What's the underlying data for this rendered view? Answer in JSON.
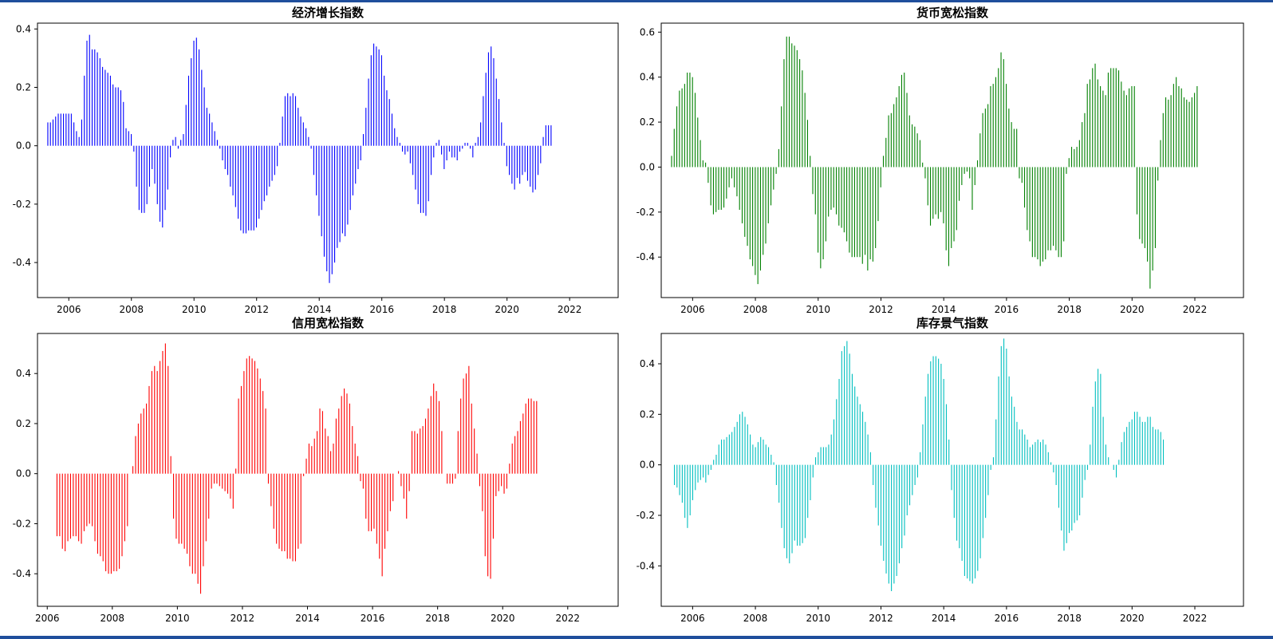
{
  "chart_data": [
    {
      "type": "bar",
      "title": "经济增长指数",
      "color": "#0000ff",
      "xlabel": "",
      "ylabel": "",
      "xlim": [
        2005.0,
        2023.55
      ],
      "ylim": [
        -0.52,
        0.42
      ],
      "xticks": [
        2006,
        2008,
        2010,
        2012,
        2014,
        2016,
        2018,
        2020,
        2022
      ],
      "xtick_labels": [
        "2006",
        "2008",
        "2010",
        "2012",
        "2014",
        "2016",
        "2018",
        "2020",
        "2022"
      ],
      "yticks": [
        -0.4,
        -0.2,
        0.0,
        0.2,
        0.4
      ],
      "ytick_labels": [
        "-0.4",
        "-0.2",
        "0.0",
        "0.2",
        "0.4"
      ],
      "grid": false,
      "start": 2005.33,
      "step": 0.0833,
      "values": [
        0.08,
        0.08,
        0.09,
        0.1,
        0.11,
        0.11,
        0.11,
        0.11,
        0.11,
        0.11,
        0.08,
        0.05,
        0.03,
        0.09,
        0.24,
        0.36,
        0.38,
        0.33,
        0.33,
        0.32,
        0.3,
        0.27,
        0.26,
        0.25,
        0.24,
        0.21,
        0.2,
        0.2,
        0.19,
        0.15,
        0.06,
        0.05,
        0.04,
        -0.02,
        -0.14,
        -0.22,
        -0.23,
        -0.23,
        -0.2,
        -0.14,
        -0.08,
        -0.13,
        -0.2,
        -0.26,
        -0.28,
        -0.22,
        -0.15,
        -0.04,
        0.02,
        0.03,
        -0.01,
        0.02,
        0.04,
        0.14,
        0.24,
        0.3,
        0.36,
        0.37,
        0.33,
        0.26,
        0.2,
        0.13,
        0.11,
        0.08,
        0.05,
        0.02,
        -0.01,
        -0.05,
        -0.08,
        -0.1,
        -0.14,
        -0.17,
        -0.21,
        -0.25,
        -0.29,
        -0.3,
        -0.3,
        -0.29,
        -0.29,
        -0.29,
        -0.28,
        -0.25,
        -0.22,
        -0.19,
        -0.17,
        -0.14,
        -0.12,
        -0.1,
        -0.07,
        0.01,
        0.1,
        0.17,
        0.18,
        0.17,
        0.18,
        0.17,
        0.13,
        0.1,
        0.08,
        0.06,
        0.03,
        -0.01,
        -0.1,
        -0.17,
        -0.24,
        -0.31,
        -0.38,
        -0.43,
        -0.47,
        -0.44,
        -0.4,
        -0.35,
        -0.33,
        -0.3,
        -0.31,
        -0.27,
        -0.22,
        -0.17,
        -0.13,
        -0.08,
        -0.05,
        0.04,
        0.13,
        0.23,
        0.31,
        0.35,
        0.34,
        0.33,
        0.31,
        0.24,
        0.19,
        0.16,
        0.11,
        0.06,
        0.03,
        0.01,
        -0.02,
        -0.03,
        -0.02,
        -0.06,
        -0.1,
        -0.15,
        -0.2,
        -0.23,
        -0.23,
        -0.24,
        -0.19,
        -0.1,
        -0.04,
        0.01,
        0.02,
        -0.03,
        -0.08,
        -0.05,
        -0.02,
        -0.04,
        -0.04,
        -0.05,
        -0.02,
        -0.01,
        0.01,
        0.01,
        -0.01,
        -0.04,
        0.01,
        0.03,
        0.08,
        0.17,
        0.25,
        0.32,
        0.34,
        0.3,
        0.23,
        0.16,
        0.08,
        0.01,
        -0.07,
        -0.1,
        -0.13,
        -0.15,
        -0.11,
        -0.13,
        -0.1,
        -0.09,
        -0.12,
        -0.14,
        -0.16,
        -0.15,
        -0.1,
        -0.06,
        0.03,
        0.07,
        0.07,
        0.07
      ]
    },
    {
      "type": "bar",
      "title": "货币宽松指数",
      "color": "#008000",
      "xlabel": "",
      "ylabel": "",
      "xlim": [
        2005.0,
        2023.55
      ],
      "ylim": [
        -0.58,
        0.64
      ],
      "xticks": [
        2006,
        2008,
        2010,
        2012,
        2014,
        2016,
        2018,
        2020,
        2022
      ],
      "xtick_labels": [
        "2006",
        "2008",
        "2010",
        "2012",
        "2014",
        "2016",
        "2018",
        "2020",
        "2022"
      ],
      "yticks": [
        -0.4,
        -0.2,
        0.0,
        0.2,
        0.4,
        0.6
      ],
      "ytick_labels": [
        "-0.4",
        "-0.2",
        "0.0",
        "0.2",
        "0.4",
        "0.6"
      ],
      "grid": false,
      "start": 2005.33,
      "step": 0.0833,
      "values": [
        0.05,
        0.17,
        0.27,
        0.34,
        0.35,
        0.37,
        0.42,
        0.42,
        0.4,
        0.33,
        0.22,
        0.12,
        0.03,
        0.02,
        -0.07,
        -0.17,
        -0.21,
        -0.2,
        -0.19,
        -0.19,
        -0.18,
        -0.14,
        -0.09,
        -0.05,
        -0.09,
        -0.13,
        -0.19,
        -0.25,
        -0.31,
        -0.35,
        -0.41,
        -0.44,
        -0.48,
        -0.52,
        -0.46,
        -0.39,
        -0.34,
        -0.25,
        -0.17,
        -0.1,
        -0.03,
        0.08,
        0.27,
        0.48,
        0.58,
        0.58,
        0.55,
        0.54,
        0.52,
        0.48,
        0.43,
        0.33,
        0.21,
        0.05,
        -0.12,
        -0.21,
        -0.38,
        -0.45,
        -0.41,
        -0.33,
        -0.22,
        -0.19,
        -0.18,
        -0.21,
        -0.26,
        -0.27,
        -0.29,
        -0.33,
        -0.38,
        -0.4,
        -0.4,
        -0.4,
        -0.4,
        -0.43,
        -0.39,
        -0.46,
        -0.41,
        -0.42,
        -0.36,
        -0.24,
        -0.09,
        0.05,
        0.13,
        0.23,
        0.24,
        0.28,
        0.31,
        0.36,
        0.41,
        0.42,
        0.33,
        0.23,
        0.19,
        0.18,
        0.15,
        0.12,
        0.02,
        -0.05,
        -0.17,
        -0.26,
        -0.23,
        -0.21,
        -0.23,
        -0.2,
        -0.25,
        -0.37,
        -0.44,
        -0.36,
        -0.33,
        -0.28,
        -0.15,
        -0.08,
        -0.03,
        -0.02,
        -0.05,
        -0.19,
        -0.08,
        0.03,
        0.15,
        0.24,
        0.26,
        0.28,
        0.36,
        0.37,
        0.4,
        0.44,
        0.51,
        0.48,
        0.37,
        0.26,
        0.2,
        0.17,
        0.17,
        -0.05,
        -0.07,
        -0.18,
        -0.28,
        -0.33,
        -0.4,
        -0.4,
        -0.41,
        -0.44,
        -0.42,
        -0.41,
        -0.37,
        -0.37,
        -0.35,
        -0.37,
        -0.4,
        -0.4,
        -0.33,
        -0.03,
        0.04,
        0.09,
        0.08,
        0.09,
        0.12,
        0.2,
        0.24,
        0.37,
        0.39,
        0.44,
        0.46,
        0.39,
        0.36,
        0.34,
        0.32,
        0.42,
        0.44,
        0.44,
        0.44,
        0.43,
        0.38,
        0.34,
        0.32,
        0.35,
        0.36,
        0.36,
        -0.21,
        -0.32,
        -0.34,
        -0.36,
        -0.42,
        -0.54,
        -0.46,
        -0.36,
        -0.06,
        0.12,
        0.24,
        0.31,
        0.3,
        0.32,
        0.37,
        0.4,
        0.36,
        0.35,
        0.31,
        0.3,
        0.29,
        0.31,
        0.33,
        0.36
      ]
    },
    {
      "type": "bar",
      "title": "信用宽松指数",
      "color": "#ff0000",
      "xlabel": "",
      "ylabel": "",
      "xlim": [
        2005.7,
        2023.55
      ],
      "ylim": [
        -0.53,
        0.56
      ],
      "xticks": [
        2006,
        2008,
        2010,
        2012,
        2014,
        2016,
        2018,
        2020,
        2022
      ],
      "xtick_labels": [
        "2006",
        "2008",
        "2010",
        "2012",
        "2014",
        "2016",
        "2018",
        "2020",
        "2022"
      ],
      "yticks": [
        -0.4,
        -0.2,
        0.0,
        0.2,
        0.4
      ],
      "ytick_labels": [
        "-0.4",
        "-0.2",
        "0.0",
        "0.2",
        "0.4"
      ],
      "grid": false,
      "start": 2006.3,
      "step": 0.0833,
      "values": [
        -0.25,
        -0.25,
        -0.3,
        -0.31,
        -0.27,
        -0.26,
        -0.25,
        -0.25,
        -0.27,
        -0.28,
        -0.23,
        -0.21,
        -0.2,
        -0.21,
        -0.27,
        -0.32,
        -0.33,
        -0.35,
        -0.39,
        -0.4,
        -0.4,
        -0.39,
        -0.39,
        -0.38,
        -0.33,
        -0.27,
        -0.21,
        0.0,
        0.03,
        0.15,
        0.2,
        0.24,
        0.26,
        0.28,
        0.35,
        0.41,
        0.43,
        0.41,
        0.45,
        0.49,
        0.52,
        0.43,
        0.07,
        -0.18,
        -0.26,
        -0.28,
        -0.28,
        -0.3,
        -0.32,
        -0.37,
        -0.4,
        -0.4,
        -0.44,
        -0.48,
        -0.37,
        -0.27,
        -0.18,
        -0.06,
        -0.04,
        -0.04,
        -0.05,
        -0.06,
        -0.07,
        -0.08,
        -0.1,
        -0.14,
        0.02,
        0.3,
        0.35,
        0.41,
        0.46,
        0.47,
        0.46,
        0.45,
        0.42,
        0.38,
        0.33,
        0.26,
        -0.04,
        -0.13,
        -0.22,
        -0.28,
        -0.3,
        -0.31,
        -0.31,
        -0.34,
        -0.34,
        -0.35,
        -0.35,
        -0.3,
        -0.28,
        -0.01,
        0.06,
        0.12,
        0.11,
        0.14,
        0.17,
        0.26,
        0.25,
        0.18,
        0.15,
        0.09,
        0.12,
        0.22,
        0.26,
        0.31,
        0.34,
        0.32,
        0.28,
        0.19,
        0.12,
        0.07,
        -0.03,
        -0.06,
        -0.18,
        -0.23,
        -0.23,
        -0.22,
        -0.28,
        -0.34,
        -0.41,
        -0.3,
        -0.23,
        -0.15,
        -0.11,
        0.0,
        0.01,
        -0.05,
        -0.1,
        -0.18,
        -0.07,
        0.17,
        0.17,
        0.16,
        0.18,
        0.19,
        0.22,
        0.26,
        0.31,
        0.36,
        0.33,
        0.29,
        0.17,
        0.0,
        -0.04,
        -0.04,
        -0.04,
        -0.02,
        0.17,
        0.3,
        0.38,
        0.4,
        0.43,
        0.28,
        0.18,
        0.08,
        -0.05,
        -0.15,
        -0.33,
        -0.41,
        -0.42,
        -0.26,
        -0.09,
        -0.07,
        -0.05,
        -0.08,
        -0.06,
        0.04,
        0.12,
        0.15,
        0.17,
        0.21,
        0.24,
        0.28,
        0.3,
        0.3,
        0.29,
        0.29
      ]
    },
    {
      "type": "bar",
      "title": "库存景气指数",
      "color": "#00bfbf",
      "xlabel": "",
      "ylabel": "",
      "xlim": [
        2005.0,
        2023.55
      ],
      "ylim": [
        -0.56,
        0.52
      ],
      "xticks": [
        2006,
        2008,
        2010,
        2012,
        2014,
        2016,
        2018,
        2020,
        2022
      ],
      "xtick_labels": [
        "2006",
        "2008",
        "2010",
        "2012",
        "2014",
        "2016",
        "2018",
        "2020",
        "2022"
      ],
      "yticks": [
        -0.4,
        -0.2,
        0.0,
        0.2,
        0.4
      ],
      "ytick_labels": [
        "-0.4",
        "-0.2",
        "0.0",
        "0.2",
        "0.4"
      ],
      "grid": false,
      "start": 2005.42,
      "step": 0.0833,
      "values": [
        -0.08,
        -0.09,
        -0.12,
        -0.15,
        -0.21,
        -0.25,
        -0.2,
        -0.14,
        -0.1,
        -0.07,
        -0.06,
        -0.05,
        -0.07,
        -0.04,
        -0.02,
        0.02,
        0.04,
        0.08,
        0.1,
        0.1,
        0.11,
        0.12,
        0.13,
        0.15,
        0.17,
        0.2,
        0.21,
        0.19,
        0.16,
        0.12,
        0.08,
        0.07,
        0.09,
        0.11,
        0.1,
        0.08,
        0.07,
        0.04,
        0.01,
        -0.08,
        -0.15,
        -0.25,
        -0.33,
        -0.37,
        -0.39,
        -0.35,
        -0.3,
        -0.32,
        -0.32,
        -0.31,
        -0.29,
        -0.21,
        -0.14,
        -0.05,
        0.03,
        0.05,
        0.07,
        0.07,
        0.07,
        0.08,
        0.12,
        0.18,
        0.26,
        0.34,
        0.45,
        0.47,
        0.49,
        0.44,
        0.36,
        0.31,
        0.27,
        0.24,
        0.21,
        0.17,
        0.12,
        0.05,
        -0.08,
        -0.17,
        -0.24,
        -0.32,
        -0.38,
        -0.43,
        -0.47,
        -0.5,
        -0.47,
        -0.44,
        -0.39,
        -0.33,
        -0.28,
        -0.2,
        -0.16,
        -0.12,
        -0.08,
        -0.05,
        0.05,
        0.16,
        0.27,
        0.36,
        0.41,
        0.43,
        0.43,
        0.42,
        0.4,
        0.34,
        0.24,
        0.1,
        -0.1,
        -0.21,
        -0.3,
        -0.33,
        -0.38,
        -0.44,
        -0.45,
        -0.46,
        -0.47,
        -0.45,
        -0.42,
        -0.37,
        -0.29,
        -0.21,
        -0.12,
        -0.02,
        0.03,
        0.18,
        0.35,
        0.47,
        0.5,
        0.46,
        0.35,
        0.27,
        0.23,
        0.17,
        0.14,
        0.14,
        0.12,
        0.1,
        0.07,
        0.08,
        0.09,
        0.1,
        0.09,
        0.1,
        0.08,
        0.05,
        0.01,
        -0.03,
        -0.08,
        -0.17,
        -0.26,
        -0.34,
        -0.31,
        -0.27,
        -0.26,
        -0.23,
        -0.22,
        -0.2,
        -0.13,
        -0.06,
        -0.02,
        0.08,
        0.23,
        0.33,
        0.38,
        0.36,
        0.19,
        0.08,
        0.03,
        0.0,
        -0.02,
        -0.05,
        0.02,
        0.09,
        0.13,
        0.15,
        0.17,
        0.18,
        0.21,
        0.21,
        0.19,
        0.17,
        0.17,
        0.19,
        0.19,
        0.15,
        0.14,
        0.14,
        0.13,
        0.1
      ]
    }
  ]
}
